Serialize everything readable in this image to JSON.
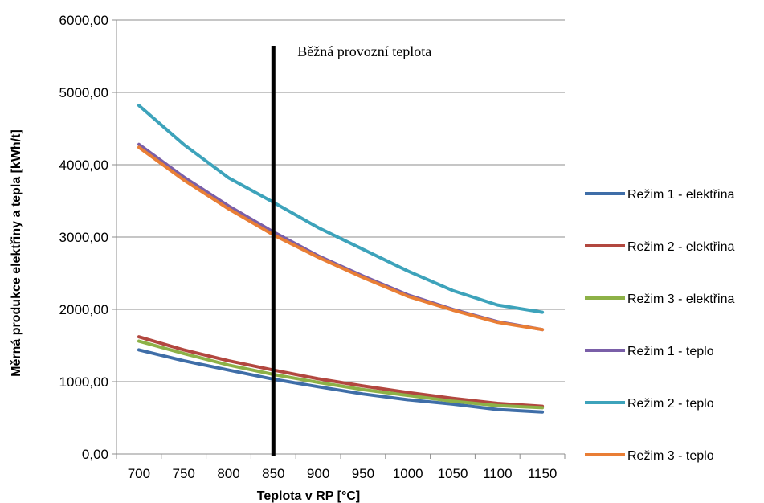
{
  "chart_data": {
    "type": "line",
    "title": "",
    "xlabel": "Teplota v RP [°C]",
    "ylabel": "Měrná produkce elektřiny a tepla [kWh/t]",
    "x": [
      700,
      750,
      800,
      850,
      900,
      950,
      1000,
      1050,
      1100,
      1150
    ],
    "x_tick_labels": [
      "700",
      "750",
      "800",
      "850",
      "900",
      "950",
      "1000",
      "1050",
      "1100",
      "1150"
    ],
    "xlim": [
      675,
      1175
    ],
    "ylim": [
      0,
      6000
    ],
    "y_ticks": [
      0,
      1000,
      2000,
      3000,
      4000,
      5000,
      6000
    ],
    "y_tick_labels": [
      "0,00",
      "1000,00",
      "2000,00",
      "3000,00",
      "4000,00",
      "5000,00",
      "6000,00"
    ],
    "grid": "horizontal",
    "legend_position": "right",
    "annotation": {
      "text": "Běžná provozní teplota",
      "x": 850
    },
    "series": [
      {
        "name": "Režim 1 - elektřina",
        "color": "#3F6EA8",
        "values": [
          1440,
          1290,
          1160,
          1035,
          930,
          830,
          750,
          690,
          615,
          580
        ]
      },
      {
        "name": "Režim 2 - elektřina",
        "color": "#B2473F",
        "values": [
          1620,
          1440,
          1290,
          1160,
          1040,
          940,
          850,
          770,
          700,
          660
        ]
      },
      {
        "name": "Režim 3 - elektřina",
        "color": "#8DB147",
        "values": [
          1560,
          1390,
          1230,
          1100,
          990,
          890,
          810,
          730,
          670,
          640
        ]
      },
      {
        "name": "Režim 1 - teplo",
        "color": "#7A5FA8",
        "values": [
          4280,
          3830,
          3430,
          3070,
          2740,
          2460,
          2200,
          2000,
          1830,
          1720
        ]
      },
      {
        "name": "Režim 2 - teplo",
        "color": "#3DA3BB",
        "values": [
          4820,
          4280,
          3820,
          3480,
          3130,
          2830,
          2530,
          2260,
          2060,
          1960
        ]
      },
      {
        "name": "Režim 3 - teplo",
        "color": "#E97E35",
        "values": [
          4240,
          3790,
          3390,
          3030,
          2720,
          2440,
          2180,
          1990,
          1820,
          1720
        ]
      }
    ]
  }
}
